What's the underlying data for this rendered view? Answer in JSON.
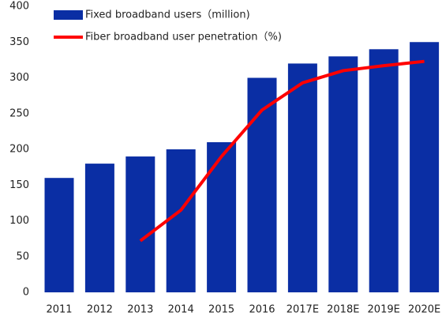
{
  "chart_data": {
    "type": "bar_line",
    "categories": [
      "2011",
      "2012",
      "2013",
      "2014",
      "2015",
      "2016",
      "2017E",
      "2018E",
      "2019E",
      "2020E"
    ],
    "series": [
      {
        "name": "Fixed broadband users（million)",
        "type": "bar",
        "color": "#0a2ea4",
        "values": [
          160,
          180,
          190,
          200,
          210,
          300,
          320,
          330,
          340,
          350
        ]
      },
      {
        "name": "Fiber broadband user penetration（%)",
        "type": "line",
        "color": "#ff0000",
        "values": [
          null,
          null,
          72,
          115,
          190,
          255,
          293,
          310,
          317,
          323
        ]
      }
    ],
    "ylim": [
      0,
      400
    ],
    "yticks": [
      0,
      50,
      100,
      150,
      200,
      250,
      300,
      350,
      400
    ],
    "grid": false,
    "legend": "upper left"
  }
}
